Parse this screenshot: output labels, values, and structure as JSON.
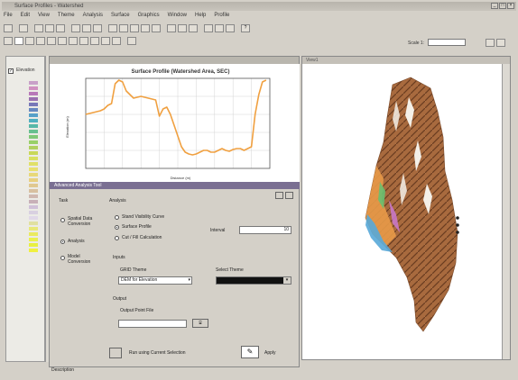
{
  "app": {
    "title": "Surface Profiles - Watershed",
    "menu": [
      "File",
      "Edit",
      "View",
      "Theme",
      "Analysis",
      "Surface",
      "Graphics",
      "Window",
      "Help",
      "Profile"
    ],
    "scale_label": "Scale 1:"
  },
  "toc": {
    "layer_label": "Elevation",
    "legend_colors": [
      "#c8a0c8",
      "#d090c0",
      "#b878b8",
      "#9a70b0",
      "#7878b8",
      "#6888c0",
      "#58a0c8",
      "#50b0c0",
      "#58b8a8",
      "#68c090",
      "#80c878",
      "#98d068",
      "#b0d060",
      "#c8d858",
      "#d8e060",
      "#e0e068",
      "#e8e070",
      "#e8d878",
      "#e8d080",
      "#e0c890",
      "#d8c0a0",
      "#d0b8b0",
      "#c8b0b8",
      "#d0c0d8",
      "#d8d0e0",
      "#e0d8e8",
      "#e0e0a0",
      "#e8e878",
      "#eaea60",
      "#eaf050",
      "#e8f040",
      "#f0f040"
    ]
  },
  "chart_data": {
    "type": "line",
    "title": "Surface Profile (Watershed Area, SEC)",
    "ylabel": "Elevation (m)",
    "xlabel": "Distance (m)",
    "ylim": [
      0,
      100
    ],
    "xlim": [
      0,
      100
    ],
    "grid": true,
    "series": [
      {
        "color": "#f0a040",
        "x": [
          0,
          4,
          8,
          10,
          12,
          14,
          16,
          18,
          20,
          22,
          26,
          30,
          34,
          38,
          40,
          42,
          44,
          46,
          48,
          50,
          52,
          54,
          56,
          58,
          60,
          62,
          64,
          66,
          68,
          70,
          72,
          74,
          76,
          78,
          80,
          82,
          84,
          86,
          88,
          90,
          92,
          94,
          96,
          98
        ],
        "y": [
          60,
          62,
          64,
          66,
          70,
          72,
          94,
          98,
          96,
          86,
          78,
          80,
          78,
          76,
          58,
          66,
          68,
          60,
          48,
          36,
          24,
          18,
          16,
          15,
          16,
          18,
          20,
          20,
          18,
          18,
          20,
          22,
          20,
          19,
          21,
          22,
          22,
          20,
          22,
          24,
          60,
          82,
          96,
          98
        ]
      }
    ]
  },
  "tool": {
    "title": "Advanced Analysis Tool",
    "task_header": "Task",
    "task_options": [
      "Spatial Data Conversion",
      "Analysis",
      "Model Conversion"
    ],
    "task_selected": 1,
    "analysis_header": "Analysis",
    "analysis_options": [
      "Stand Visibility Curve",
      "Surface Profile",
      "Cut / Fill Calculation"
    ],
    "analysis_selected": 1,
    "interval_label": "Interval",
    "interval_value": "10",
    "inputs_header": "Inputs",
    "grid_theme_label": "GRID Theme",
    "grid_theme_value": "DEM for Elevation",
    "select_theme_label": "Select Theme",
    "select_theme_value": "",
    "output_header": "Output",
    "output_file_label": "Output Point File",
    "output_file_value": "",
    "use_current_selection_label": "Run using Current Selection",
    "apply_label": "Apply",
    "description_label": "Description",
    "colors": {
      "title_bar": "#7a6f92"
    }
  },
  "map": {
    "title": "View1"
  }
}
